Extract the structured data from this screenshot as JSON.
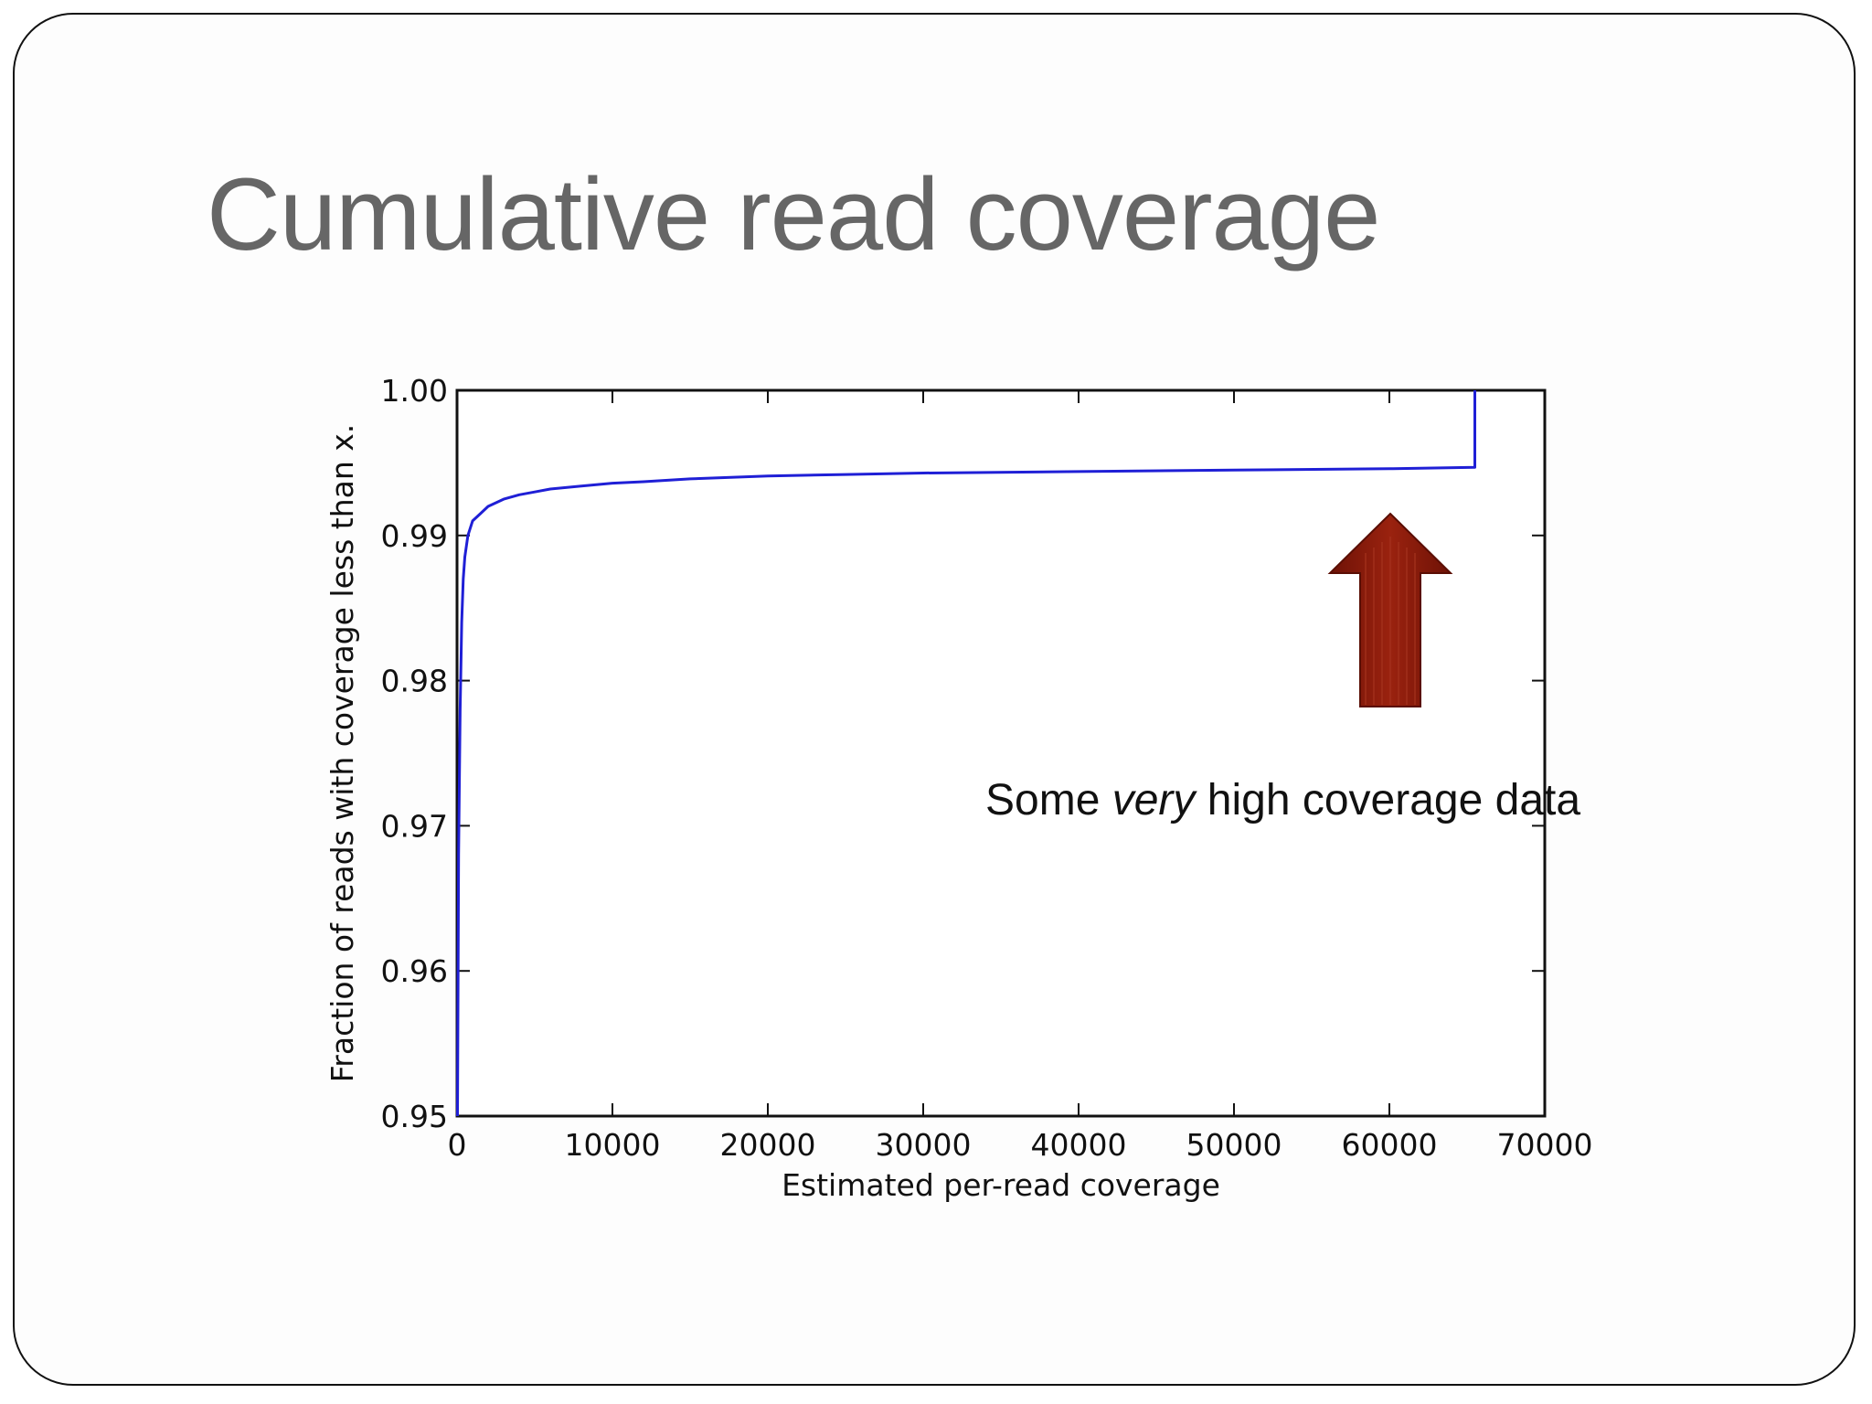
{
  "slide": {
    "title": "Cumulative read coverage",
    "annotation": {
      "prefix": "Some ",
      "emphasis": "very",
      "suffix": " high coverage data"
    }
  },
  "colors": {
    "line": "#1f1fd6",
    "arrow": "#8b1a0a",
    "arrow_stripe": "#a3301c",
    "title": "#666666"
  },
  "chart_data": {
    "type": "line",
    "title": "",
    "xlabel": "Estimated per-read coverage",
    "ylabel": "Fraction of reads with coverage less than x.",
    "xlim": [
      0,
      70000
    ],
    "ylim": [
      0.95,
      1.0
    ],
    "xticks": [
      "0",
      "10000",
      "20000",
      "30000",
      "40000",
      "50000",
      "60000",
      "70000"
    ],
    "yticks": [
      "0.95",
      "0.96",
      "0.97",
      "0.98",
      "0.99",
      "1.00"
    ],
    "grid": false,
    "series": [
      {
        "x": [
          30,
          100,
          200,
          300,
          400,
          500,
          700,
          1000,
          1500,
          2000,
          3000,
          4000,
          5000,
          6000,
          8000,
          10000,
          12000,
          15000,
          20000,
          25000,
          30000,
          40000,
          50000,
          60000,
          65500,
          65500
        ],
        "y": [
          0.95,
          0.968,
          0.978,
          0.984,
          0.987,
          0.9885,
          0.99,
          0.991,
          0.9915,
          0.992,
          0.9925,
          0.9928,
          0.993,
          0.9932,
          0.9934,
          0.9936,
          0.9937,
          0.9939,
          0.9941,
          0.9942,
          0.9943,
          0.9944,
          0.9945,
          0.9946,
          0.9947,
          1.0
        ]
      }
    ]
  }
}
